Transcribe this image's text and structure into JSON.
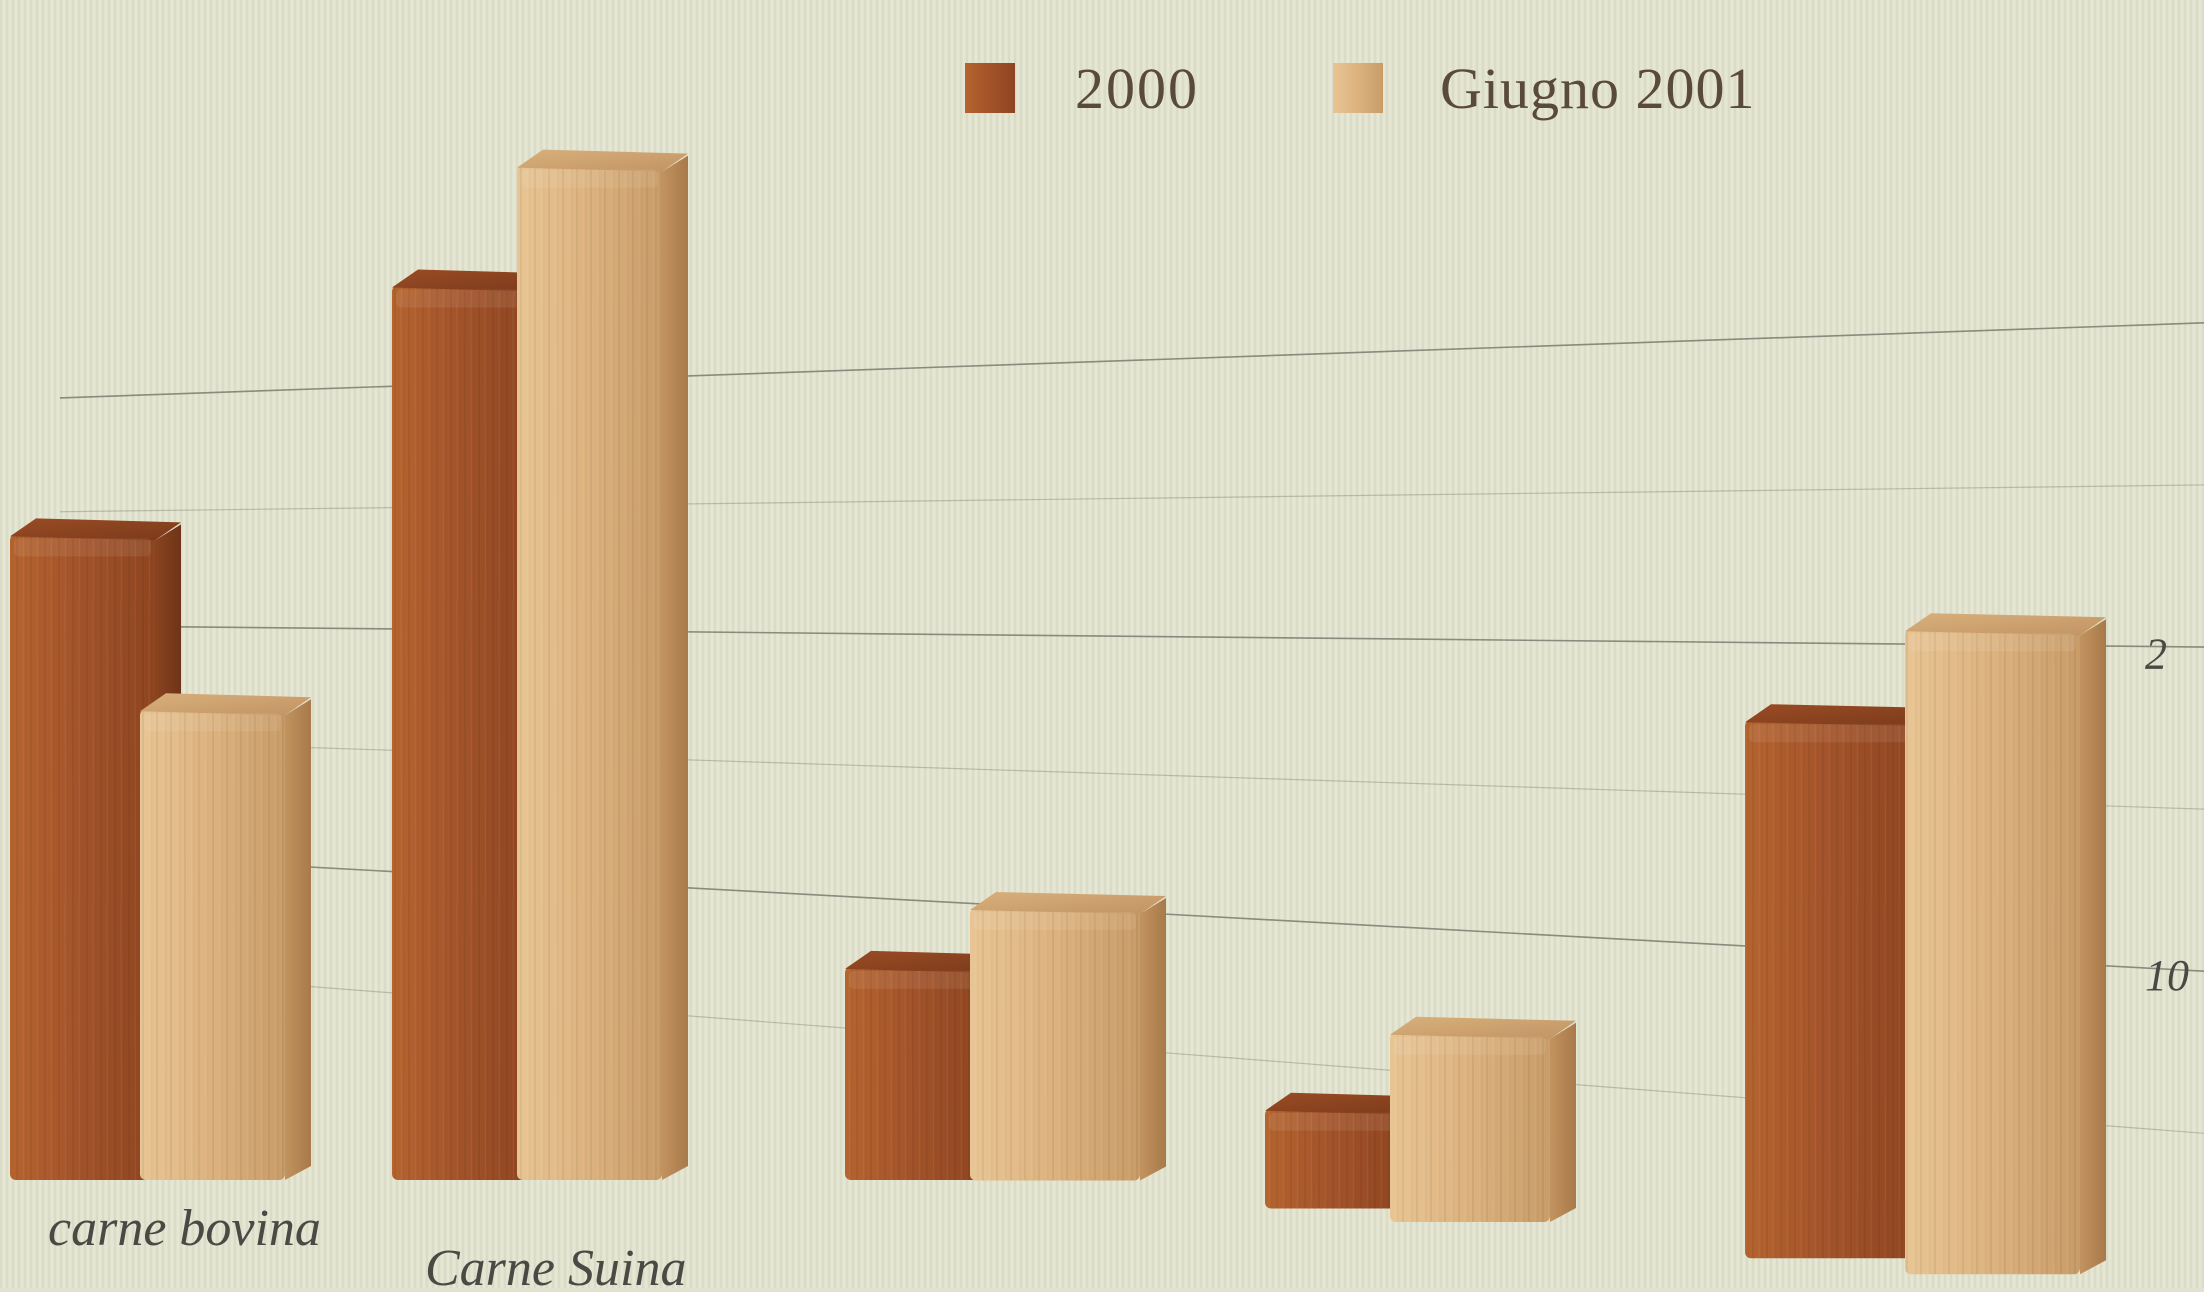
{
  "chart_data": {
    "type": "bar",
    "style": "3d-wood",
    "categories": [
      "carne bovina",
      "Carne Suina",
      "",
      "",
      ""
    ],
    "series": [
      {
        "name": "2000",
        "values": [
          24,
          34,
          7.5,
          3.5,
          17.5
        ]
      },
      {
        "name": "Giugno 2001",
        "values": [
          16.5,
          38.5,
          10,
          6.5,
          20.5
        ]
      }
    ],
    "visible_tick_labels": [
      "10",
      "2"
    ],
    "ylim": [
      0,
      40
    ],
    "grid": true,
    "legend_position": "top-center",
    "colors": {
      "series_2000": "#a8582a",
      "series_2001": "#d9ae7a",
      "background": "#e2e3cf",
      "gridline": "#6b6d63"
    }
  }
}
